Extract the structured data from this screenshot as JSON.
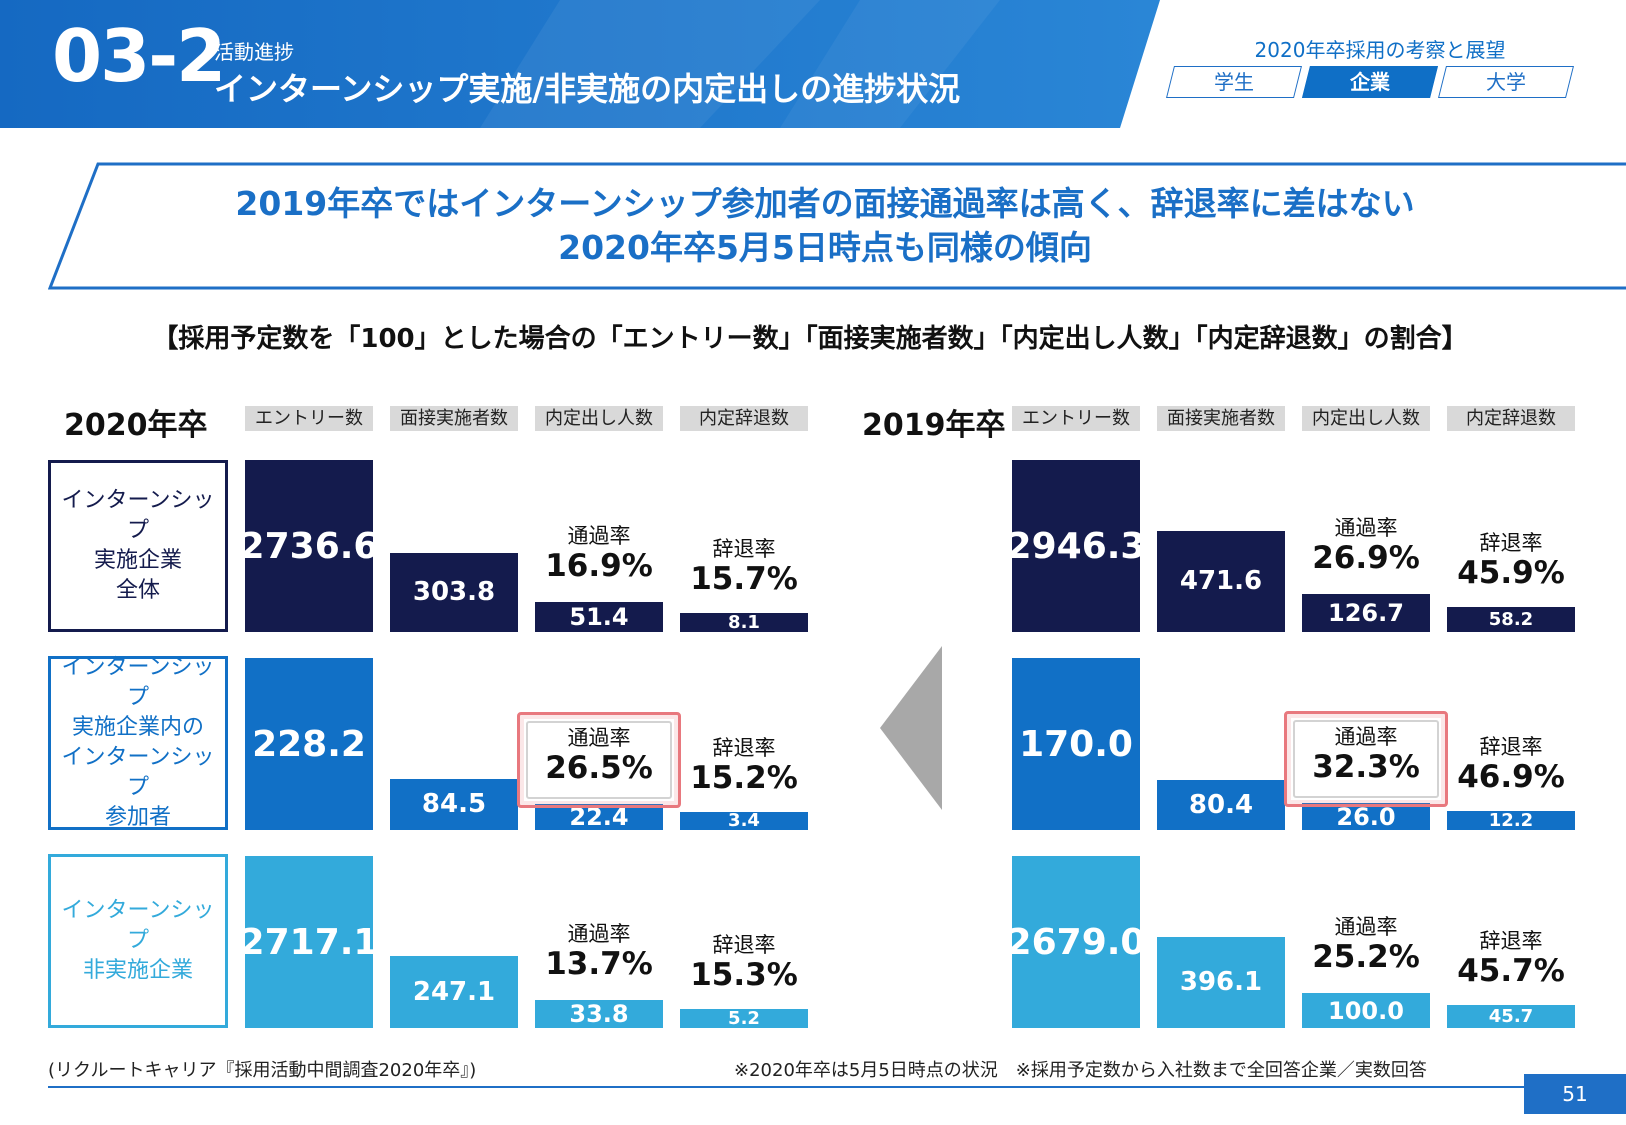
{
  "header": {
    "section_number": "03-2",
    "section_sub": "活動進捗",
    "section_title": "インターンシップ実施/非実施の内定出しの進捗状況",
    "report_title": "2020年卒採用の考察と展望",
    "tabs": [
      {
        "label": "学生",
        "active": false
      },
      {
        "label": "企業",
        "active": true
      },
      {
        "label": "大学",
        "active": false
      }
    ]
  },
  "headline": {
    "line1": "2019年卒ではインターンシップ参加者の面接通過率は高く、辞退率に差はない",
    "line2": "2020年卒5月5日時点も同様の傾向"
  },
  "chart_caption": "【採用予定数を「100」とした場合の「エントリー数」「面接実施者数」「内定出し人数」「内定辞退数」の割合】",
  "row_labels": [
    {
      "lines": [
        "インターンシップ",
        "実施企業",
        "全体"
      ]
    },
    {
      "lines": [
        "インターンシップ",
        "実施企業内の",
        "インターンシップ",
        "参加者"
      ]
    },
    {
      "lines": [
        "インターンシップ",
        "非実施企業"
      ]
    }
  ],
  "colors": {
    "header_blue": "#1f74c9",
    "row1": "#141b4d",
    "row2": "#1170c6",
    "row3": "#33aadb",
    "highlight": "#e8787e",
    "arrow": "#a8a8a8"
  },
  "chart_data": [
    {
      "type": "bar",
      "title": "2020年卒",
      "categories": [
        "エントリー数",
        "面接実施者数",
        "内定出し人数",
        "内定辞退数"
      ],
      "series": [
        {
          "name": "インターンシップ実施企業全体",
          "values": [
            2736.6,
            303.8,
            51.4,
            8.1
          ],
          "pass_rate_label": "通過率",
          "pass_rate": "16.9%",
          "decline_rate_label": "辞退率",
          "decline_rate": "15.7%",
          "highlight": false
        },
        {
          "name": "インターンシップ実施企業内のインターンシップ参加者",
          "values": [
            228.2,
            84.5,
            22.4,
            3.4
          ],
          "pass_rate_label": "通過率",
          "pass_rate": "26.5%",
          "decline_rate_label": "辞退率",
          "decline_rate": "15.2%",
          "highlight": true
        },
        {
          "name": "インターンシップ非実施企業",
          "values": [
            2717.1,
            247.1,
            33.8,
            5.2
          ],
          "pass_rate_label": "通過率",
          "pass_rate": "13.7%",
          "decline_rate_label": "辞退率",
          "decline_rate": "15.3%",
          "highlight": false
        }
      ]
    },
    {
      "type": "bar",
      "title": "2019年卒",
      "categories": [
        "エントリー数",
        "面接実施者数",
        "内定出し人数",
        "内定辞退数"
      ],
      "series": [
        {
          "name": "インターンシップ実施企業全体",
          "values": [
            2946.3,
            471.6,
            126.7,
            58.2
          ],
          "pass_rate_label": "通過率",
          "pass_rate": "26.9%",
          "decline_rate_label": "辞退率",
          "decline_rate": "45.9%",
          "highlight": false
        },
        {
          "name": "インターンシップ実施企業内のインターンシップ参加者",
          "values": [
            170.0,
            80.4,
            26.0,
            12.2
          ],
          "pass_rate_label": "通過率",
          "pass_rate": "32.3%",
          "decline_rate_label": "辞退率",
          "decline_rate": "46.9%",
          "highlight": true
        },
        {
          "name": "インターンシップ非実施企業",
          "values": [
            2679.0,
            396.1,
            100.0,
            45.7
          ],
          "pass_rate_label": "通過率",
          "pass_rate": "25.2%",
          "decline_rate_label": "辞退率",
          "decline_rate": "45.7%",
          "highlight": false
        }
      ]
    }
  ],
  "footer": {
    "source": "(リクルートキャリア『採用活動中間調査2020年卒』)",
    "notes": "※2020年卒は5月5日時点の状況　※採用予定数から入社数まで全回答企業／実数回答",
    "page_number": "51"
  }
}
